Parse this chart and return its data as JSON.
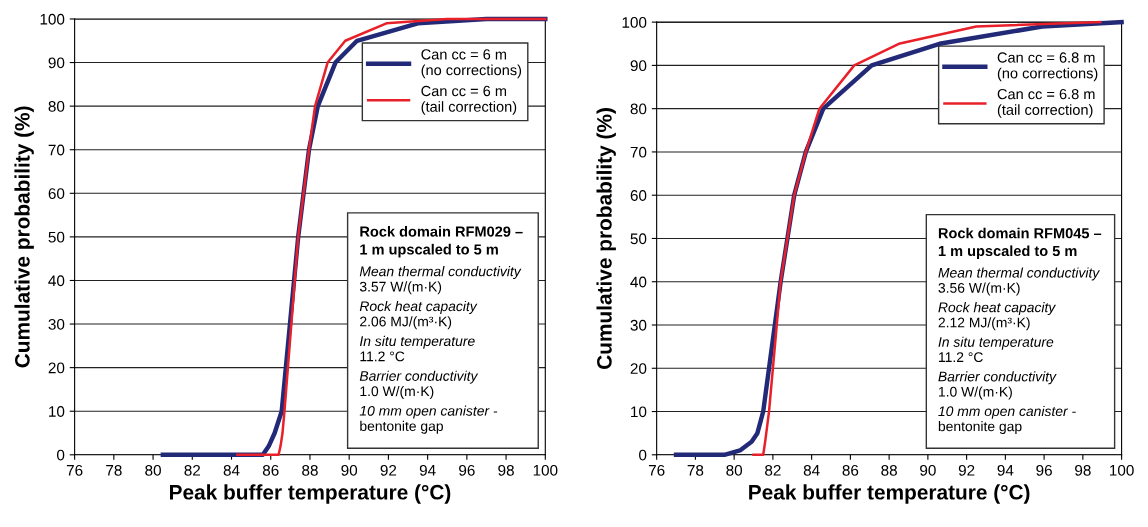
{
  "chart_data": [
    {
      "type": "line",
      "xlabel": "Peak buffer temperature (°C)",
      "ylabel": "Cumulative probability (%)",
      "xlim": [
        76,
        100
      ],
      "ylim": [
        0,
        100
      ],
      "xticks": [
        76,
        78,
        80,
        82,
        84,
        86,
        88,
        90,
        92,
        94,
        96,
        98,
        100
      ],
      "yticks": [
        0,
        10,
        20,
        30,
        40,
        50,
        60,
        70,
        80,
        90,
        100
      ],
      "grid": "y",
      "legend": "top right",
      "line_style": "solid",
      "marker": "none",
      "series": [
        {
          "name": "Can cc = 6 m\n(no corrections)",
          "color": "#222a78",
          "x": [
            80.5,
            85.6,
            85.9,
            86.2,
            86.56,
            87.4,
            87.95,
            88.4,
            89.3,
            90.4,
            93.5,
            97.0,
            100
          ],
          "values": [
            0,
            0,
            2,
            5,
            10,
            50,
            70,
            80,
            90,
            95,
            99,
            100,
            100
          ]
        },
        {
          "name": "Can cc = 6 m\n(tail correction)",
          "color": "#e8202a",
          "x": [
            84.3,
            86.4,
            86.5,
            86.6,
            86.7,
            87.4,
            87.95,
            88.26,
            88.9,
            89.8,
            91.9,
            95.0,
            100
          ],
          "values": [
            0,
            0,
            2,
            5,
            10,
            50,
            70,
            80,
            90,
            95,
            99,
            100,
            100
          ]
        }
      ],
      "annotations": [
        "Rock domain RFM029 –\n1 m upscaled to 5 m",
        "Mean thermal conductivity\n3.57 W/(m·K)",
        "Rock heat capacity\n2.06 MJ/(m³·K)",
        "In situ temperature\n11.2 °C",
        "Barrier conductivity\n1.0 W/(m·K)",
        "10 mm open canister -\nbentonite gap"
      ]
    },
    {
      "type": "line",
      "xlabel": "Peak buffer temperature (°C)",
      "ylabel": "Cumulative probability (%)",
      "xlim": [
        76,
        100
      ],
      "ylim": [
        0,
        100
      ],
      "xticks": [
        76,
        78,
        80,
        82,
        84,
        86,
        88,
        90,
        92,
        94,
        96,
        98,
        100
      ],
      "yticks": [
        0,
        10,
        20,
        30,
        40,
        50,
        60,
        70,
        80,
        90,
        100
      ],
      "grid": "y",
      "legend": "top right",
      "line_style": "solid",
      "marker": "none",
      "series": [
        {
          "name": "Can cc = 6.8 m\n(no corrections)",
          "color": "#222a78",
          "x": [
            77.0,
            79.5,
            80.3,
            80.9,
            81.2,
            81.5,
            81.8,
            82.4,
            83.1,
            83.7,
            84.6,
            87.1,
            90.6,
            95.9,
            100
          ],
          "values": [
            0,
            0,
            1,
            3,
            5,
            10,
            20,
            40,
            60,
            70,
            80,
            90,
            95,
            99,
            100
          ]
        },
        {
          "name": "Can cc = 6.8 m\n(tail correction)",
          "color": "#e8202a",
          "x": [
            81.0,
            81.5,
            81.6,
            81.8,
            82.0,
            82.4,
            83.1,
            83.7,
            84.4,
            86.2,
            88.5,
            92.5,
            98.9
          ],
          "values": [
            0,
            0,
            3,
            10,
            20,
            40,
            60,
            70,
            80,
            90,
            95,
            99,
            100
          ]
        }
      ],
      "annotations": [
        "Rock domain RFM045 –\n1 m upscaled to 5 m",
        "Mean thermal conductivity\n3.56 W/(m·K)",
        "Rock heat capacity\n2.12 MJ/(m³·K)",
        "In situ temperature\n11.2 °C",
        "Barrier conductivity\n1.0 W/(m·K)",
        "10 mm open canister -\nbentonite gap"
      ]
    }
  ]
}
